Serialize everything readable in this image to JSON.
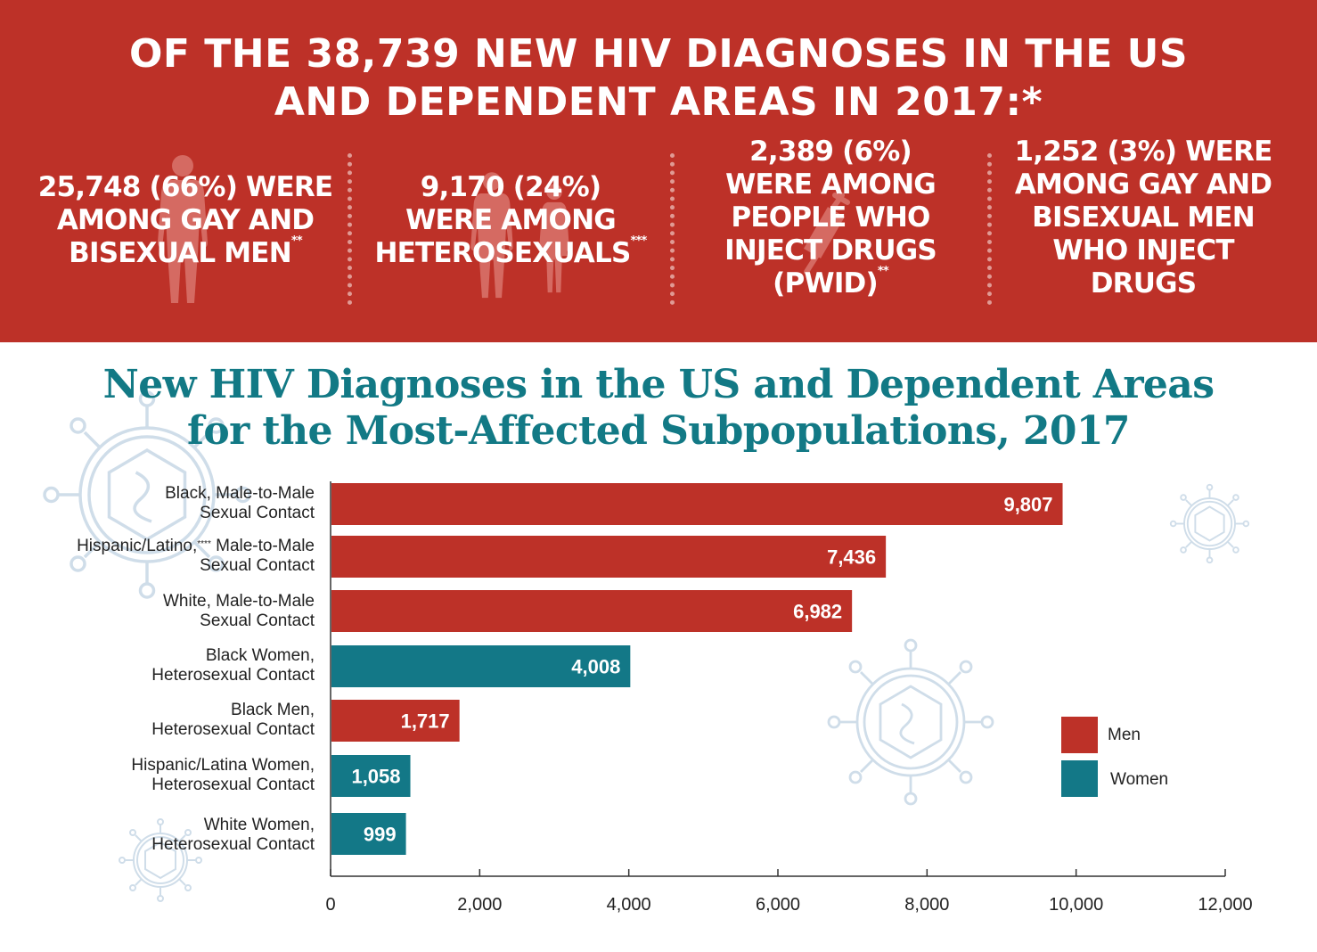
{
  "banner": {
    "title_line1": "OF THE 38,739 NEW HIV DIAGNOSES IN THE US",
    "title_line2": "AND DEPENDENT AREAS IN 2017:*",
    "stats": [
      {
        "lines": [
          "25,748 (66%) WERE",
          "AMONG GAY AND",
          "BISEXUAL MEN"
        ],
        "marker": "**"
      },
      {
        "lines": [
          "9,170 (24%)",
          "WERE AMONG",
          "HETEROSEXUALS"
        ],
        "marker": "***"
      },
      {
        "lines": [
          "2,389 (6%)",
          "WERE AMONG",
          "PEOPLE WHO",
          "INJECT DRUGS",
          "(PWID)"
        ],
        "marker": "**"
      },
      {
        "lines": [
          "1,252 (3%) WERE",
          "AMONG GAY AND",
          "BISEXUAL MEN",
          "WHO INJECT",
          "DRUGS"
        ],
        "marker": ""
      }
    ]
  },
  "chart_title_line1": "New HIV Diagnoses in the US and Dependent Areas",
  "chart_title_line2": "for the Most-Affected Subpopulations, 2017",
  "colors": {
    "banner": "#bd3128",
    "men": "#bd3128",
    "women": "#137887",
    "title": "#127985",
    "virus": "#cfdde9"
  },
  "legend": [
    {
      "label": "Men",
      "group": "men"
    },
    {
      "label": "Women",
      "group": "women"
    }
  ],
  "chart_data": {
    "type": "bar",
    "orientation": "horizontal",
    "categories": [
      {
        "line1": "Black, Male-to-Male",
        "line2": "Sexual Contact",
        "marker": ""
      },
      {
        "line1": "Hispanic/Latino,",
        "line1b": " Male-to-Male",
        "line2": "Sexual Contact",
        "marker": "****"
      },
      {
        "line1": "White, Male-to-Male",
        "line2": "Sexual Contact",
        "marker": ""
      },
      {
        "line1": "Black Women,",
        "line2": "Heterosexual Contact",
        "marker": ""
      },
      {
        "line1": "Black Men,",
        "line2": "Heterosexual Contact",
        "marker": ""
      },
      {
        "line1": "Hispanic/Latina Women,",
        "line2": "Heterosexual Contact",
        "marker": ""
      },
      {
        "line1": "White Women,",
        "line2": "Heterosexual Contact",
        "marker": ""
      }
    ],
    "values": [
      9807,
      7436,
      6982,
      4008,
      1717,
      1058,
      999
    ],
    "value_labels": [
      "9,807",
      "7,436",
      "6,982",
      "4,008",
      "1,717",
      "1,058",
      "999"
    ],
    "groups": [
      "men",
      "men",
      "men",
      "women",
      "men",
      "women",
      "women"
    ],
    "xlim": [
      0,
      12000
    ],
    "xticks": [
      0,
      2000,
      4000,
      6000,
      8000,
      10000,
      12000
    ],
    "xtick_labels": [
      "0",
      "2,000",
      "4,000",
      "6,000",
      "8,000",
      "10,000",
      "12,000"
    ],
    "legend_position": "right"
  }
}
